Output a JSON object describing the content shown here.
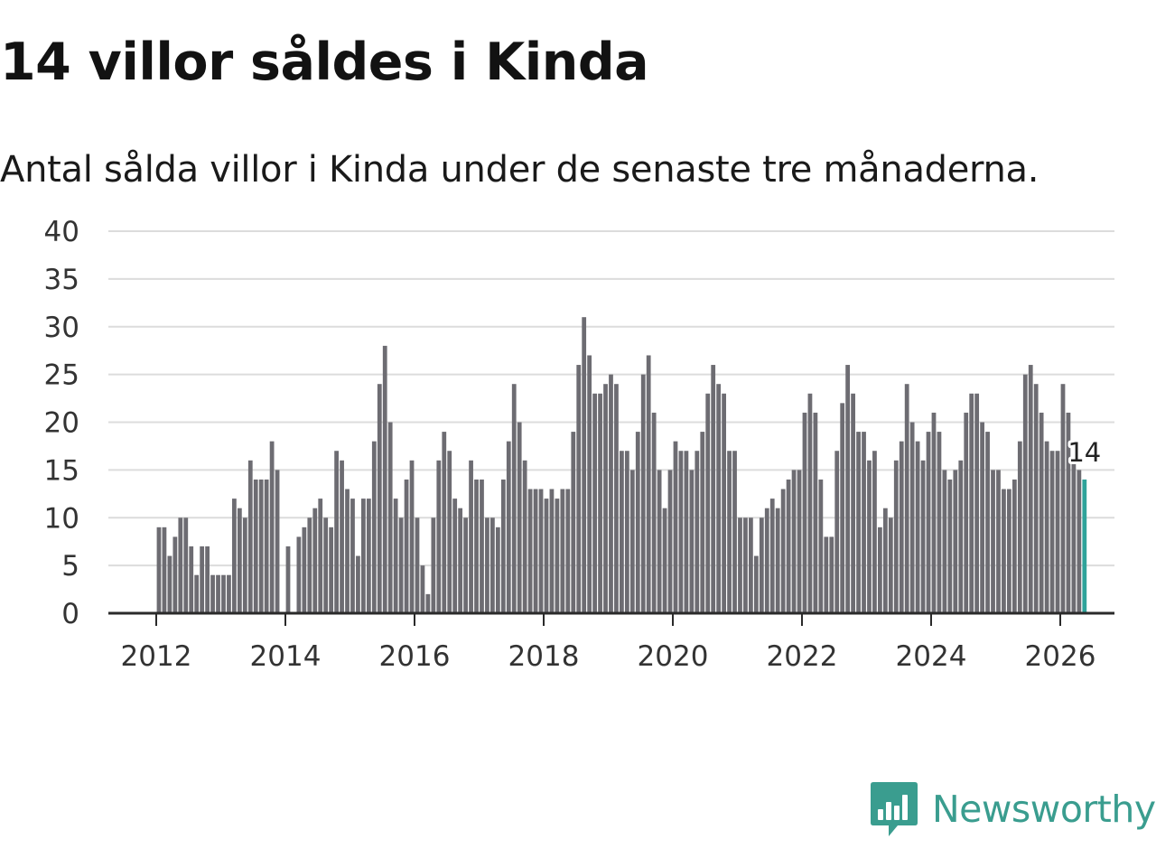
{
  "header": {
    "title": "14 villor såldes i Kinda",
    "subtitle": "Antal sålda villor i Kinda under de senaste tre månaderna."
  },
  "brand": {
    "name": "Newsworthy",
    "color": "#3a9d8f"
  },
  "chart_data": {
    "type": "bar",
    "title": "14 villor såldes i Kinda",
    "subtitle": "Antal sålda villor i Kinda under de senaste tre månaderna.",
    "xlabel": "",
    "ylabel": "",
    "ylim": [
      0,
      40
    ],
    "yticks": [
      "0",
      "5",
      "10",
      "15",
      "20",
      "25",
      "30",
      "35",
      "40"
    ],
    "xticks": [
      "2012",
      "2014",
      "2016",
      "2018",
      "2020",
      "2022",
      "2024",
      "2026"
    ],
    "start": "2012-01",
    "period": "month",
    "grid": true,
    "bar_color": "#6d6c72",
    "highlight_color": "#2fa39a",
    "highlight_label": "14",
    "values": [
      9,
      9,
      6,
      8,
      10,
      10,
      7,
      4,
      7,
      7,
      4,
      4,
      4,
      4,
      12,
      11,
      10,
      16,
      14,
      14,
      14,
      18,
      15,
      0,
      7,
      0,
      8,
      9,
      10,
      11,
      12,
      10,
      9,
      17,
      16,
      13,
      12,
      6,
      12,
      12,
      18,
      24,
      28,
      20,
      12,
      10,
      14,
      16,
      10,
      5,
      2,
      10,
      16,
      19,
      17,
      12,
      11,
      10,
      16,
      14,
      14,
      10,
      10,
      9,
      14,
      18,
      24,
      20,
      16,
      13,
      13,
      13,
      12,
      13,
      12,
      13,
      13,
      19,
      26,
      31,
      27,
      23,
      23,
      24,
      25,
      24,
      17,
      17,
      15,
      19,
      25,
      27,
      21,
      15,
      11,
      15,
      18,
      17,
      17,
      15,
      17,
      19,
      23,
      26,
      24,
      23,
      17,
      17,
      10,
      10,
      10,
      6,
      10,
      11,
      12,
      11,
      13,
      14,
      15,
      15,
      21,
      23,
      21,
      14,
      8,
      8,
      17,
      22,
      26,
      23,
      19,
      19,
      16,
      17,
      9,
      11,
      10,
      16,
      18,
      24,
      20,
      18,
      16,
      19,
      21,
      19,
      15,
      14,
      15,
      16,
      21,
      23,
      23,
      20,
      19,
      15,
      15,
      13,
      13,
      14,
      18,
      25,
      26,
      24,
      21,
      18,
      17,
      17,
      24,
      21,
      16,
      15,
      14
    ]
  }
}
